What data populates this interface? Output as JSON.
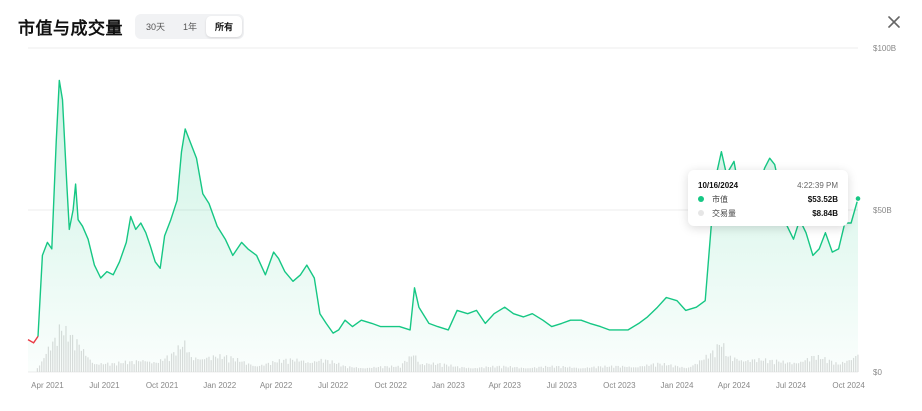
{
  "header": {
    "title": "市值与成交量",
    "tabs": [
      {
        "label": "30天",
        "active": false
      },
      {
        "label": "1年",
        "active": false
      },
      {
        "label": "所有",
        "active": true
      }
    ]
  },
  "tooltip": {
    "date": "10/16/2024",
    "time": "4:22:39 PM",
    "rows": [
      {
        "label": "市值",
        "value": "$53.52B",
        "color": "#16c784"
      },
      {
        "label": "交易量",
        "value": "$8.84B",
        "color": "#e6e6e6"
      }
    ]
  },
  "colors": {
    "line": "#16c784",
    "negative": "#ea3943",
    "volume": "#dcdcdc",
    "grid": "#ececec"
  },
  "chart_data": {
    "type": "area",
    "y_axis": {
      "ticks": [
        "$100B",
        "$50B",
        "$0"
      ],
      "ylim": [
        0,
        100
      ],
      "unit": "B USD"
    },
    "x_axis": {
      "ticks": [
        "Apr 2021",
        "Jul 2021",
        "Oct 2021",
        "Jan 2022",
        "Apr 2022",
        "Jul 2022",
        "Oct 2022",
        "Jan 2023",
        "Apr 2023",
        "Jul 2023",
        "Oct 2023",
        "Jan 2024",
        "Apr 2024",
        "Jul 2024",
        "Oct 2024"
      ]
    },
    "market_cap": {
      "name": "市值",
      "points": [
        [
          "2021-03-01",
          10
        ],
        [
          "2021-03-10",
          9
        ],
        [
          "2021-03-17",
          11
        ],
        [
          "2021-03-24",
          36
        ],
        [
          "2021-04-01",
          40
        ],
        [
          "2021-04-08",
          38
        ],
        [
          "2021-04-15",
          71
        ],
        [
          "2021-04-20",
          90
        ],
        [
          "2021-04-25",
          84
        ],
        [
          "2021-05-02",
          58
        ],
        [
          "2021-05-06",
          44
        ],
        [
          "2021-05-12",
          50
        ],
        [
          "2021-05-16",
          58
        ],
        [
          "2021-05-20",
          47
        ],
        [
          "2021-05-27",
          45
        ],
        [
          "2021-06-05",
          41
        ],
        [
          "2021-06-15",
          33
        ],
        [
          "2021-06-25",
          29
        ],
        [
          "2021-07-05",
          31
        ],
        [
          "2021-07-15",
          30
        ],
        [
          "2021-07-25",
          34
        ],
        [
          "2021-08-05",
          40
        ],
        [
          "2021-08-12",
          48
        ],
        [
          "2021-08-20",
          44
        ],
        [
          "2021-08-28",
          46
        ],
        [
          "2021-09-05",
          43
        ],
        [
          "2021-09-12",
          39
        ],
        [
          "2021-09-20",
          34
        ],
        [
          "2021-09-28",
          32
        ],
        [
          "2021-10-05",
          42
        ],
        [
          "2021-10-15",
          47
        ],
        [
          "2021-10-25",
          53
        ],
        [
          "2021-11-01",
          68
        ],
        [
          "2021-11-07",
          75
        ],
        [
          "2021-11-15",
          71
        ],
        [
          "2021-11-25",
          66
        ],
        [
          "2021-12-05",
          55
        ],
        [
          "2021-12-15",
          52
        ],
        [
          "2021-12-28",
          45
        ],
        [
          "2022-01-10",
          41
        ],
        [
          "2022-01-22",
          36
        ],
        [
          "2022-02-05",
          40
        ],
        [
          "2022-02-15",
          38
        ],
        [
          "2022-03-01",
          36
        ],
        [
          "2022-03-15",
          30
        ],
        [
          "2022-03-28",
          37
        ],
        [
          "2022-04-05",
          35
        ],
        [
          "2022-04-15",
          31
        ],
        [
          "2022-04-28",
          28
        ],
        [
          "2022-05-10",
          30
        ],
        [
          "2022-05-20",
          33
        ],
        [
          "2022-06-01",
          29
        ],
        [
          "2022-06-10",
          18
        ],
        [
          "2022-06-20",
          15
        ],
        [
          "2022-07-01",
          12
        ],
        [
          "2022-07-10",
          13
        ],
        [
          "2022-07-20",
          16
        ],
        [
          "2022-08-01",
          14
        ],
        [
          "2022-08-15",
          16
        ],
        [
          "2022-09-01",
          15
        ],
        [
          "2022-09-15",
          14
        ],
        [
          "2022-10-01",
          14
        ],
        [
          "2022-10-15",
          14
        ],
        [
          "2022-11-01",
          13
        ],
        [
          "2022-11-08",
          26
        ],
        [
          "2022-11-15",
          20
        ],
        [
          "2022-12-01",
          15
        ],
        [
          "2022-12-15",
          14
        ],
        [
          "2023-01-01",
          13
        ],
        [
          "2023-01-15",
          19
        ],
        [
          "2023-02-01",
          18
        ],
        [
          "2023-02-15",
          19
        ],
        [
          "2023-03-01",
          15
        ],
        [
          "2023-03-15",
          18
        ],
        [
          "2023-04-01",
          20
        ],
        [
          "2023-04-15",
          18
        ],
        [
          "2023-05-01",
          17
        ],
        [
          "2023-05-15",
          18
        ],
        [
          "2023-06-01",
          16
        ],
        [
          "2023-06-15",
          14
        ],
        [
          "2023-07-01",
          15
        ],
        [
          "2023-07-15",
          16
        ],
        [
          "2023-08-01",
          16
        ],
        [
          "2023-08-15",
          15
        ],
        [
          "2023-09-01",
          14
        ],
        [
          "2023-09-15",
          13
        ],
        [
          "2023-10-01",
          13
        ],
        [
          "2023-10-15",
          13
        ],
        [
          "2023-11-01",
          15
        ],
        [
          "2023-11-15",
          17
        ],
        [
          "2023-12-01",
          20
        ],
        [
          "2023-12-15",
          23
        ],
        [
          "2024-01-01",
          22
        ],
        [
          "2024-01-15",
          19
        ],
        [
          "2024-02-01",
          20
        ],
        [
          "2024-02-15",
          22
        ],
        [
          "2024-02-26",
          48
        ],
        [
          "2024-03-05",
          62
        ],
        [
          "2024-03-12",
          68
        ],
        [
          "2024-03-20",
          61
        ],
        [
          "2024-04-01",
          65
        ],
        [
          "2024-04-12",
          53
        ],
        [
          "2024-04-25",
          55
        ],
        [
          "2024-05-05",
          54
        ],
        [
          "2024-05-20",
          63
        ],
        [
          "2024-05-28",
          66
        ],
        [
          "2024-06-05",
          64
        ],
        [
          "2024-06-15",
          55
        ],
        [
          "2024-06-25",
          45
        ],
        [
          "2024-07-05",
          41
        ],
        [
          "2024-07-15",
          47
        ],
        [
          "2024-07-25",
          43
        ],
        [
          "2024-08-05",
          36
        ],
        [
          "2024-08-15",
          38
        ],
        [
          "2024-08-25",
          43
        ],
        [
          "2024-09-05",
          37
        ],
        [
          "2024-09-15",
          38
        ],
        [
          "2024-09-25",
          46
        ],
        [
          "2024-10-05",
          46
        ],
        [
          "2024-10-16",
          53.52
        ]
      ]
    },
    "volume": {
      "name": "交易量",
      "points": [
        [
          "2021-03-15",
          2
        ],
        [
          "2021-04-01",
          10
        ],
        [
          "2021-04-15",
          13
        ],
        [
          "2021-04-20",
          16
        ],
        [
          "2021-05-01",
          14
        ],
        [
          "2021-05-12",
          12
        ],
        [
          "2021-05-20",
          11
        ],
        [
          "2021-06-15",
          4
        ],
        [
          "2021-07-15",
          3
        ],
        [
          "2021-08-15",
          4
        ],
        [
          "2021-09-05",
          6
        ],
        [
          "2021-09-20",
          4
        ],
        [
          "2021-10-15",
          6
        ],
        [
          "2021-11-07",
          11
        ],
        [
          "2021-11-15",
          6
        ],
        [
          "2021-12-05",
          7
        ],
        [
          "2022-01-20",
          5
        ],
        [
          "2022-03-01",
          3
        ],
        [
          "2022-04-05",
          4
        ],
        [
          "2022-05-10",
          5
        ],
        [
          "2022-06-12",
          5
        ],
        [
          "2022-07-20",
          2
        ],
        [
          "2022-09-01",
          2
        ],
        [
          "2022-10-15",
          2
        ],
        [
          "2022-11-08",
          9
        ],
        [
          "2022-11-15",
          4
        ],
        [
          "2023-01-15",
          2
        ],
        [
          "2023-03-15",
          2
        ],
        [
          "2023-06-15",
          2
        ],
        [
          "2023-09-15",
          2
        ],
        [
          "2023-12-01",
          3
        ],
        [
          "2024-01-15",
          2
        ],
        [
          "2024-02-26",
          7
        ],
        [
          "2024-03-05",
          9
        ],
        [
          "2024-03-12",
          11
        ],
        [
          "2024-03-20",
          6
        ],
        [
          "2024-04-12",
          6
        ],
        [
          "2024-05-28",
          4
        ],
        [
          "2024-06-25",
          4
        ],
        [
          "2024-08-05",
          6
        ],
        [
          "2024-09-15",
          3
        ],
        [
          "2024-10-16",
          8.84
        ]
      ]
    }
  }
}
